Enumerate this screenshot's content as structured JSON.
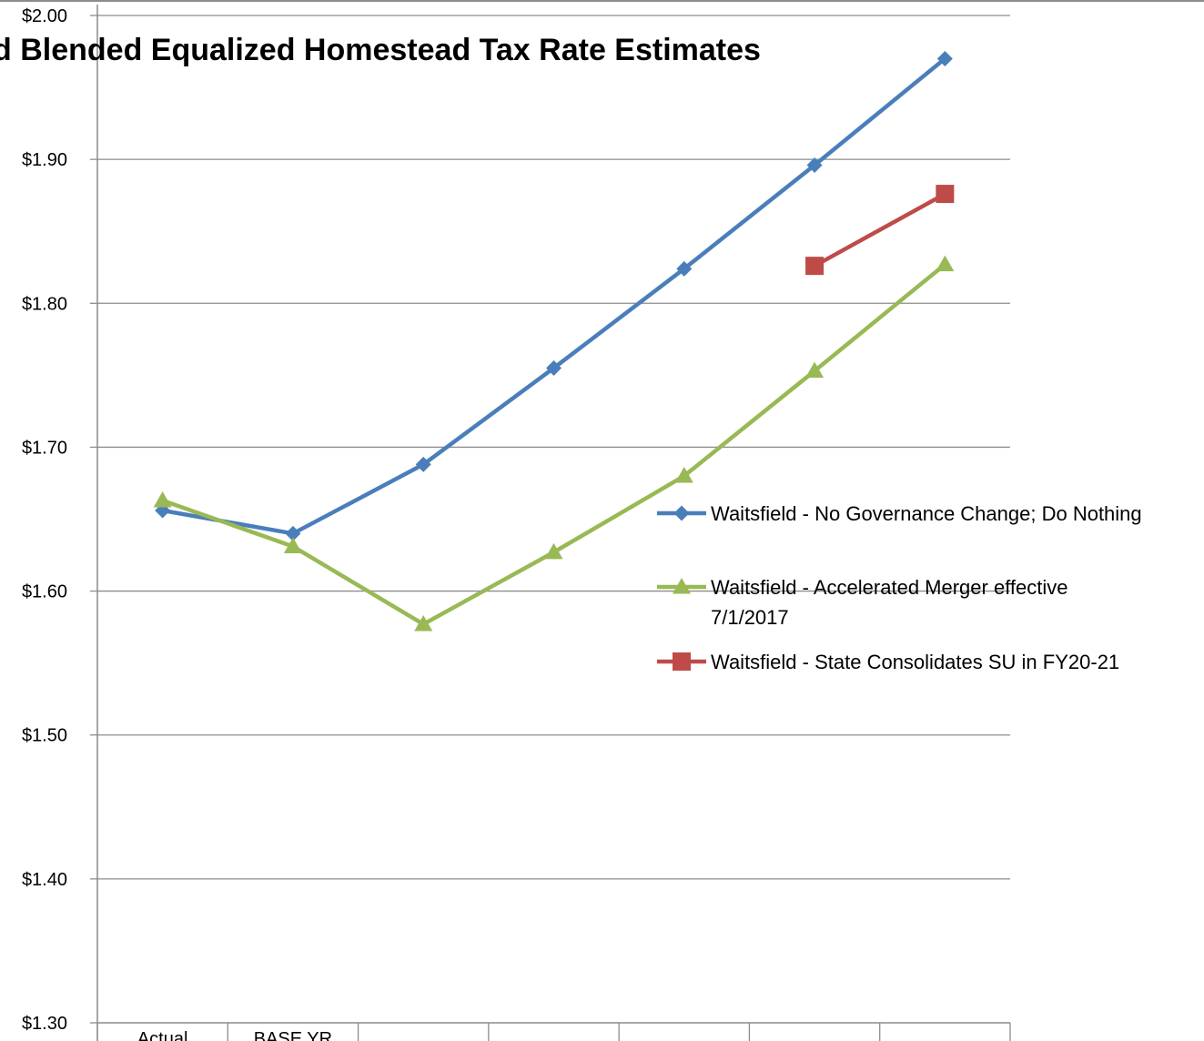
{
  "chart_data": {
    "type": "line",
    "title": "d Blended Equalized Homestead Tax Rate Estimates",
    "xlabel": "",
    "ylabel": "",
    "categories": [
      "Actual",
      "BASE YR",
      "",
      "",
      "",
      "",
      ""
    ],
    "ylim": [
      1.3,
      2.0
    ],
    "yticks": [
      "$1.30",
      "$1.40",
      "$1.50",
      "$1.60",
      "$1.70",
      "$1.80",
      "$1.90",
      "$2.00"
    ],
    "grid": true,
    "legend_position": "right",
    "series": [
      {
        "name": "Waitsfield - No Governance Change; Do Nothing",
        "values": [
          1.656,
          1.64,
          1.688,
          1.755,
          1.824,
          1.896,
          1.97
        ],
        "color": "#4A7EBB",
        "marker": "diamond"
      },
      {
        "name": "Waitsfield - Accelerated Merger effective 7/1/2017",
        "name_lines": [
          "Waitsfield - Accelerated Merger effective",
          "7/1/2017"
        ],
        "values": [
          1.663,
          1.631,
          1.577,
          1.627,
          1.68,
          1.753,
          1.827
        ],
        "color": "#98B954",
        "marker": "triangle"
      },
      {
        "name": "Waitsfield - State Consolidates SU in FY20-21",
        "values": [
          null,
          null,
          null,
          null,
          null,
          1.826,
          1.876
        ],
        "color": "#BE4B48",
        "marker": "square"
      }
    ]
  }
}
